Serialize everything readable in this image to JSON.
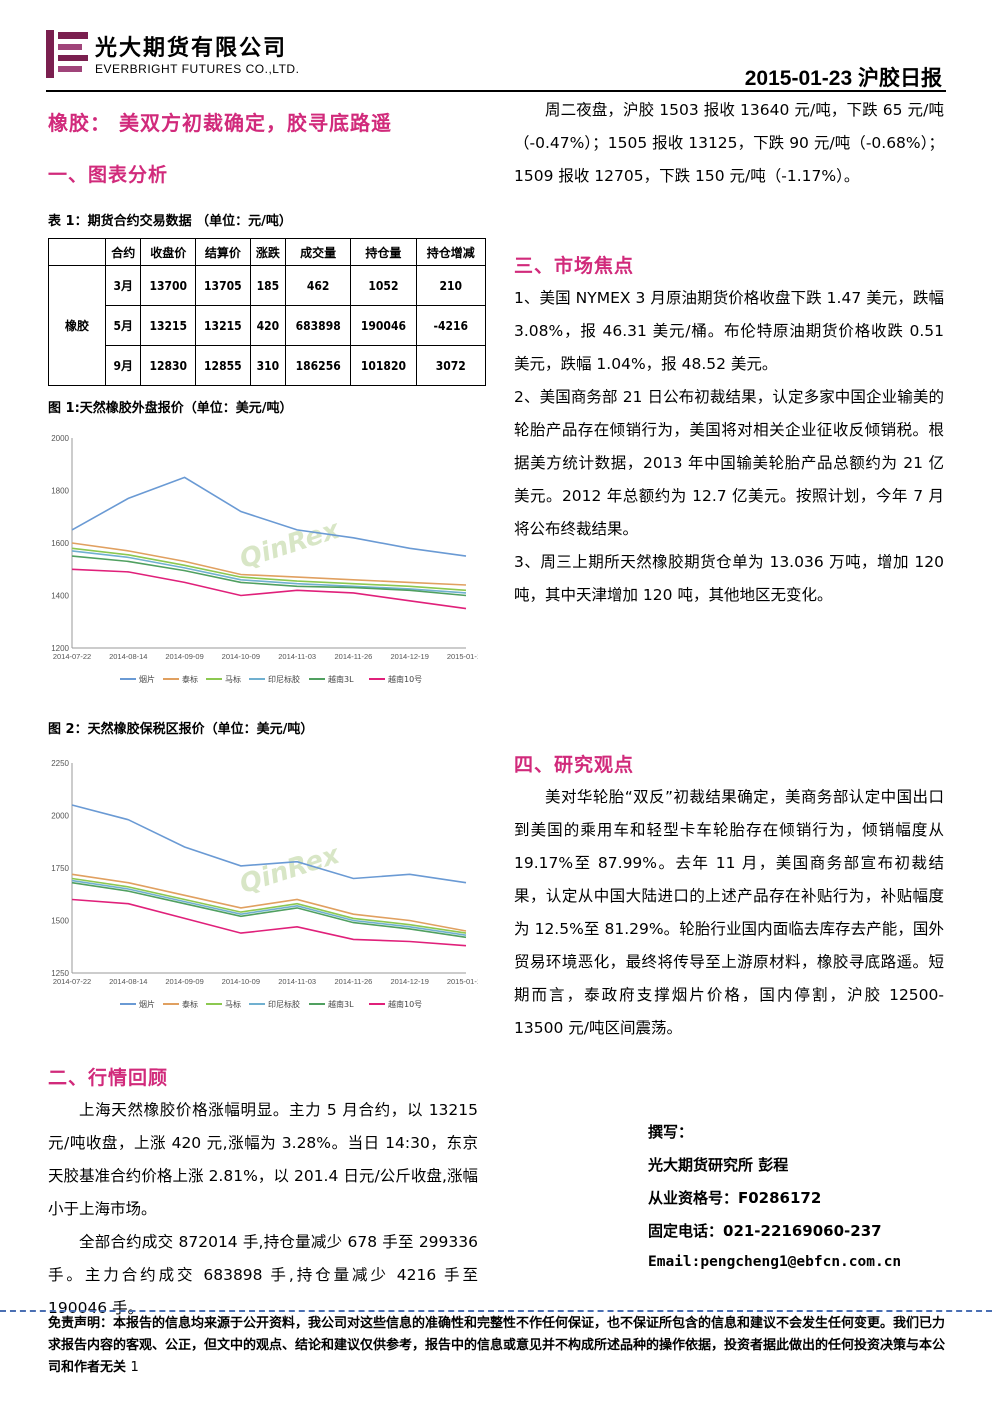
{
  "header": {
    "company_cn": "光大期货有限公司",
    "company_en": "EVERBRIGHT FUTURES CO.,LTD.",
    "date_title": "2015-01-23  沪胶日报"
  },
  "title": "橡胶：  美双方初裁确定，胶寻底路遥",
  "sections": {
    "s1": "一、图表分析",
    "s2": "二、行情回顾",
    "s3": "三、市场焦点",
    "s4": "四、研究观点"
  },
  "table": {
    "caption": "表 1：期货合约交易数据  （单位：元/吨）",
    "headers": [
      "",
      "合约",
      "收盘价",
      "结算价",
      "涨跌",
      "成交量",
      "持仓量",
      "持仓增减"
    ],
    "group": "橡胶",
    "rows": [
      [
        "3月",
        "13700",
        "13705",
        "185",
        "462",
        "1052",
        "210"
      ],
      [
        "5月",
        "13215",
        "13215",
        "420",
        "683898",
        "190046",
        "-4216"
      ],
      [
        "9月",
        "12830",
        "12855",
        "310",
        "186256",
        "101820",
        "3072"
      ]
    ]
  },
  "fig1": {
    "caption": "图 1:天然橡胶外盘报价（单位：美元/吨）",
    "watermark": "QinRex",
    "chart_data": {
      "type": "line",
      "x": [
        "2014-07-22",
        "2014-08-14",
        "2014-09-09",
        "2014-10-09",
        "2014-11-03",
        "2014-11-26",
        "2014-12-19",
        "2015-01-15"
      ],
      "ylim": [
        1200,
        2000
      ],
      "yticks": [
        1200,
        1400,
        1600,
        1800,
        2000
      ],
      "series": [
        {
          "name": "烟片",
          "color": "#6a9ad4",
          "values": [
            1650,
            1770,
            1850,
            1720,
            1650,
            1620,
            1580,
            1550
          ]
        },
        {
          "name": "泰标",
          "color": "#e0a060",
          "values": [
            1600,
            1570,
            1530,
            1480,
            1470,
            1460,
            1450,
            1440
          ]
        },
        {
          "name": "马标",
          "color": "#8cc850",
          "values": [
            1580,
            1555,
            1515,
            1470,
            1455,
            1445,
            1435,
            1420
          ]
        },
        {
          "name": "印尼标胶",
          "color": "#70b0d0",
          "values": [
            1570,
            1545,
            1505,
            1460,
            1445,
            1435,
            1425,
            1410
          ]
        },
        {
          "name": "越南3L",
          "color": "#50a060",
          "values": [
            1550,
            1530,
            1495,
            1450,
            1435,
            1430,
            1420,
            1400
          ]
        },
        {
          "name": "越南10号",
          "color": "#e0207a",
          "values": [
            1500,
            1490,
            1450,
            1400,
            1420,
            1410,
            1380,
            1350
          ]
        }
      ]
    }
  },
  "fig2": {
    "caption": "图 2：天然橡胶保税区报价（单位：美元/吨）",
    "watermark": "QinRex",
    "chart_data": {
      "type": "line",
      "x": [
        "2014-07-22",
        "2014-08-14",
        "2014-09-09",
        "2014-10-09",
        "2014-11-03",
        "2014-11-26",
        "2014-12-19",
        "2015-01-15"
      ],
      "ylim": [
        1250,
        2250
      ],
      "yticks": [
        1250,
        1500,
        1750,
        2000,
        2250
      ],
      "series": [
        {
          "name": "烟片",
          "color": "#6a9ad4",
          "values": [
            2050,
            1980,
            1850,
            1760,
            1780,
            1700,
            1720,
            1680
          ]
        },
        {
          "name": "泰标",
          "color": "#e0a060",
          "values": [
            1720,
            1680,
            1620,
            1560,
            1600,
            1530,
            1500,
            1450
          ]
        },
        {
          "name": "马标",
          "color": "#8cc850",
          "values": [
            1700,
            1660,
            1600,
            1540,
            1580,
            1510,
            1480,
            1440
          ]
        },
        {
          "name": "印尼标胶",
          "color": "#70b0d0",
          "values": [
            1690,
            1650,
            1590,
            1530,
            1570,
            1500,
            1470,
            1430
          ]
        },
        {
          "name": "越南3L",
          "color": "#50a060",
          "values": [
            1680,
            1640,
            1580,
            1520,
            1560,
            1490,
            1460,
            1420
          ]
        },
        {
          "name": "越南10号",
          "color": "#e0207a",
          "values": [
            1600,
            1580,
            1510,
            1440,
            1470,
            1410,
            1400,
            1380
          ]
        }
      ]
    }
  },
  "review": {
    "p1": "上海天然橡胶价格涨幅明显。主力 5 月合约，以 13215 元/吨收盘，上涨 420 元,涨幅为 3.28%。当日 14:30，东京天胶基准合约价格上涨 2.81%，以 201.4 日元/公斤收盘,涨幅小于上海市场。",
    "p2": "全部合约成交 872014 手,持仓量减少 678 手至 299336 手。主力合约成交 683898 手,持仓量减少 4216 手至 190046 手。"
  },
  "night": "周二夜盘，沪胶 1503 报收 13640 元/吨，下跌 65 元/吨（-0.47%）；1505 报收 13125，下跌 90 元/吨（-0.68%）；1509 报收 12705，下跌 150 元/吨（-1.17%）。",
  "focus": {
    "p1": "1、美国 NYMEX 3 月原油期货价格收盘下跌 1.47 美元，跌幅 3.08%，报 46.31 美元/桶。布伦特原油期货价格收跌 0.51 美元，跌幅 1.04%，报 48.52 美元。",
    "p2": "2、美国商务部 21 日公布初裁结果，认定多家中国企业输美的轮胎产品存在倾销行为，美国将对相关企业征收反倾销税。根据美方统计数据，2013 年中国输美轮胎产品总额约为 21 亿美元。2012 年总额约为 12.7 亿美元。按照计划，今年 7 月将公布终裁结果。",
    "p3": "3、周三上期所天然橡胶期货仓单为 13.036 万吨，增加 120 吨，其中天津增加 120 吨，其他地区无变化。"
  },
  "view": "美对华轮胎“双反”初裁结果确定，美商务部认定中国出口到美国的乘用车和轻型卡车轮胎存在倾销行为，倾销幅度从 19.17%至 87.99%。去年 11 月，美国商务部宣布初裁结果，认定从中国大陆进口的上述产品存在补贴行为，补贴幅度为 12.5%至 81.29%。轮胎行业国内面临去库存去产能，国外贸易环境恶化，最终将传导至上游原材料，橡胶寻底路遥。短期而言，泰政府支撑烟片价格，国内停割，沪胶 12500-13500 元/吨区间震荡。",
  "author": {
    "label": "撰写：",
    "name": "光大期货研究所  彭程",
    "license": "从业资格号：F0286172",
    "phone": "固定电话：021-22169060-237",
    "email": "Email:pengcheng1@ebfcn.com.cn"
  },
  "disclaimer": "免责声明：本报告的信息均来源于公开资料，我公司对这些信息的准确性和完整性不作任何保证，也不保证所包含的信息和建议不会发生任何变更。我们已力求报告内容的客观、公正，但文中的观点、结论和建议仅供参考，报告中的信息或意见并不构成所述品种的操作依据，投资者据此做出的任何投资决策与本公司和作者无关",
  "page_number": "1"
}
